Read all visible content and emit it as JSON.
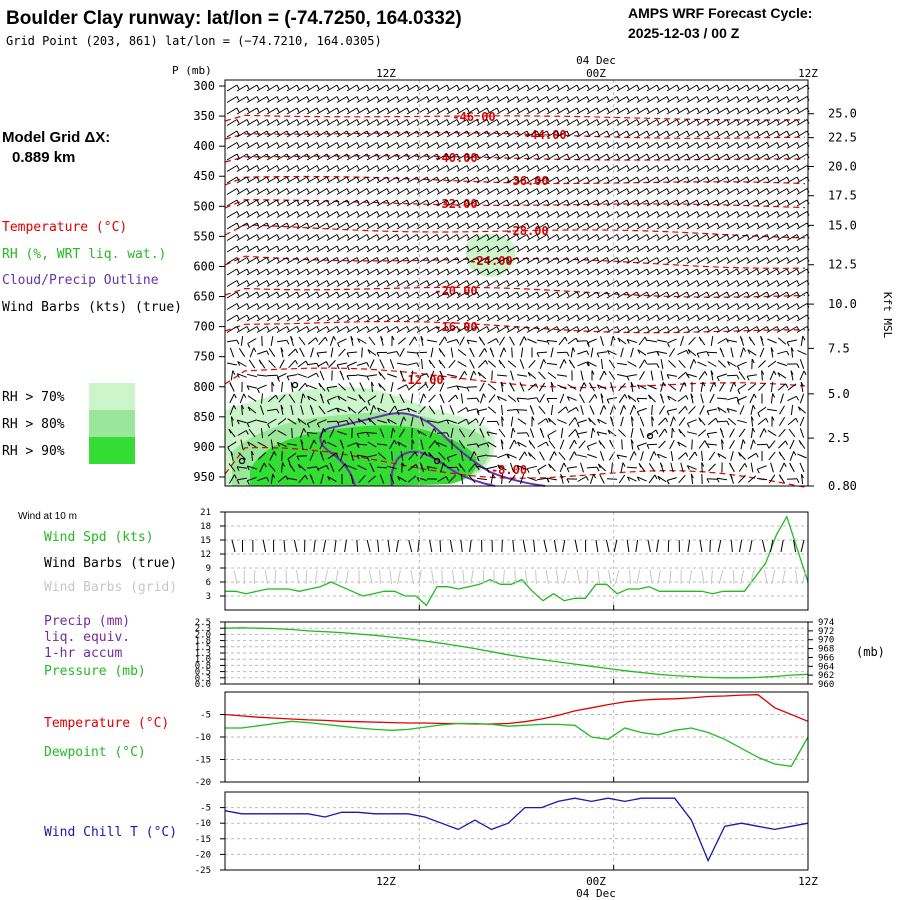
{
  "header": {
    "title": "Boulder Clay runway:  lat/lon = (-74.7250, 164.0332)",
    "subtitle": "Grid Point (203, 861) lat/lon = (−74.7210, 164.0305)",
    "cycle_label": "AMPS WRF Forecast Cycle:",
    "cycle_value": "2025-12-03 / 00  Z"
  },
  "time_axis": {
    "top_labels": [
      "12Z",
      "00Z",
      "12Z"
    ],
    "date_label": "04 Dec",
    "bottom_labels": [
      "12Z",
      "00Z",
      "12Z"
    ]
  },
  "legend": {
    "grid_title": "Model Grid ΔX:",
    "grid_value": "0.889 km",
    "temperature": "Temperature (°C)",
    "rh": "RH (%, WRT liq. wat.)",
    "cloud": "Cloud/Precip Outline",
    "wind": "Wind Barbs (kts) (true)",
    "rh_levels": [
      "RH > 70%",
      "RH > 80%",
      "RH > 90%"
    ]
  },
  "colors": {
    "temperature": "#e00000",
    "rh70": "#ccf5cc",
    "rh80": "#9ae69a",
    "rh90": "#33dd33",
    "cloud": "#6633aa",
    "wind_true": "#000000",
    "wind_grid": "#c8c8c8",
    "green": "#22bb22",
    "precip": "#7a2a9a",
    "windchill": "#1a1aa8"
  },
  "chart_data": [
    {
      "type": "heatmap",
      "title": "",
      "ylabel": "P (mb)",
      "y2label": "Kft MSL",
      "yticks": [
        300,
        350,
        400,
        450,
        500,
        550,
        600,
        650,
        700,
        750,
        800,
        850,
        900,
        950
      ],
      "y2ticks": [
        "25.0",
        "22.5",
        "20.0",
        "17.5",
        "15.0",
        "12.5",
        "10.0",
        "7.5",
        "5.0",
        "2.5",
        "0.80"
      ],
      "xrange_hours": [
        0,
        36
      ],
      "temperature_labels": [
        "-46.00",
        "-44.00",
        "-40.00",
        "-36.00",
        "-32.00",
        "-28.00",
        "-24.00",
        "-20.00",
        "-16.00",
        "-12.00",
        "-8.00"
      ],
      "grid": true
    },
    {
      "type": "line",
      "title": "Wind at 10 m",
      "xrange_hours": [
        0,
        36
      ],
      "ylim": [
        0,
        21
      ],
      "yticks": [
        3,
        6,
        9,
        12,
        15,
        18,
        21
      ],
      "series": [
        {
          "name": "Wind Spd (kts)",
          "values": [
            4,
            4,
            3.5,
            4,
            4.5,
            4.5,
            4.5,
            4,
            4.5,
            5,
            6,
            5,
            4,
            3,
            3.5,
            4,
            4,
            3,
            3,
            1,
            5,
            5,
            4.5,
            5,
            5.5,
            6.5,
            5.5,
            5.5,
            6.5,
            4,
            2,
            3.5,
            2,
            2.5,
            2.5,
            5.5,
            5.5,
            3.5,
            4.5,
            4.5,
            5,
            4,
            4,
            4,
            4,
            4,
            3.5,
            4,
            4,
            4,
            7,
            10,
            16,
            20,
            13,
            6
          ]
        },
        {
          "name": "Wind Barbs (true)",
          "values": []
        },
        {
          "name": "Wind Barbs (grid)",
          "values": []
        }
      ],
      "grid": true
    },
    {
      "type": "line",
      "title": "",
      "xrange_hours": [
        0,
        36
      ],
      "ylim_left": [
        0,
        2.5
      ],
      "yticks_left": [
        "0.0",
        "0.3",
        "0.5",
        "0.8",
        "1.0",
        "1.3",
        "1.5",
        "1.8",
        "2.0",
        "2.3",
        "2.5"
      ],
      "ylim_right": [
        960,
        974
      ],
      "yticks_right": [
        "960",
        "962",
        "964",
        "966",
        "968",
        "970",
        "972",
        "974"
      ],
      "right_unit": "(mb)",
      "series": [
        {
          "name": "Precip (mm) liq. equiv. 1-hr accum",
          "values": []
        },
        {
          "name": "Pressure (mb)",
          "values": [
            972.6,
            972.7,
            972.6,
            972.5,
            972.3,
            972.0,
            971.8,
            971.6,
            971.3,
            971.0,
            970.6,
            970.2,
            969.7,
            969.2,
            968.6,
            968.0,
            967.3,
            966.6,
            966.0,
            965.5,
            965.0,
            964.5,
            964.0,
            963.5,
            963.0,
            962.6,
            962.2,
            961.9,
            961.7,
            961.5,
            961.4,
            961.4,
            961.5,
            961.7,
            962.0,
            962.2
          ]
        }
      ],
      "legend_labels": [
        "Precip (mm)",
        "liq. equiv.",
        "1-hr accum",
        "Pressure (mb)"
      ],
      "grid": true
    },
    {
      "type": "line",
      "title": "",
      "xrange_hours": [
        0,
        36
      ],
      "ylim": [
        -20,
        0
      ],
      "yticks": [
        "-5",
        "-10",
        "-15",
        "-20"
      ],
      "series": [
        {
          "name": "Temperature (°C)",
          "values": [
            -5,
            -5.3,
            -5.6,
            -5.8,
            -6.0,
            -6.2,
            -6.3,
            -6.5,
            -6.6,
            -6.7,
            -6.8,
            -6.9,
            -6.9,
            -7.0,
            -7.0,
            -7.1,
            -7.1,
            -7.0,
            -6.6,
            -6.0,
            -5.2,
            -4.2,
            -3.5,
            -2.8,
            -2.2,
            -1.8,
            -1.6,
            -1.5,
            -1.3,
            -1.0,
            -0.9,
            -0.7,
            -0.6,
            -3.5,
            -5.0,
            -6.5
          ]
        },
        {
          "name": "Dewpoint (°C)",
          "values": [
            -8,
            -8,
            -7.5,
            -7,
            -6.5,
            -6.8,
            -7.2,
            -7.6,
            -8.0,
            -8.3,
            -8.5,
            -8.3,
            -7.8,
            -7.3,
            -7.0,
            -7.0,
            -7.2,
            -7.6,
            -7.4,
            -7.2,
            -7.2,
            -7.4,
            -10.0,
            -10.5,
            -8.0,
            -9.0,
            -9.5,
            -8.5,
            -8.0,
            -9.0,
            -10.5,
            -12.5,
            -14.5,
            -16.0,
            -16.5,
            -10.0
          ]
        }
      ],
      "grid": true
    },
    {
      "type": "line",
      "title": "",
      "xrange_hours": [
        0,
        36
      ],
      "ylim": [
        -25,
        0
      ],
      "yticks": [
        "-5",
        "-10",
        "-15",
        "-20",
        "-25"
      ],
      "series": [
        {
          "name": "Wind Chill T (°C)",
          "values": [
            -6,
            -7,
            -7,
            -7,
            -7,
            -7,
            -8,
            -6.5,
            -6.5,
            -7,
            -7,
            -7,
            -8,
            -10,
            -12,
            -9,
            -12,
            -10,
            -5,
            -5,
            -3,
            -2,
            -3,
            -2,
            -3,
            -2,
            -2,
            -2,
            -9,
            -22,
            -11,
            -10,
            -11,
            -12,
            -11,
            -10
          ]
        }
      ],
      "grid": true
    }
  ]
}
